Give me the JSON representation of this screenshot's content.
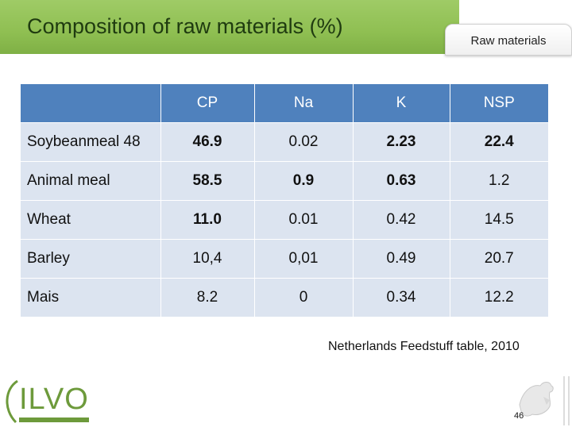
{
  "slide": {
    "title": "Composition of raw materials (%)",
    "tab_label": "Raw materials",
    "source_note": "Netherlands Feedstuff table, 2010",
    "page_number": "46",
    "logo_text": "ILVO"
  },
  "table": {
    "headers": [
      "",
      "CP",
      "Na",
      "K",
      "NSP"
    ],
    "rows": [
      {
        "label": "Soybeanmeal 48",
        "cp": "46.9",
        "na": "0.02",
        "k": "2.23",
        "nsp": "22.4"
      },
      {
        "label": "Animal meal",
        "cp": "58.5",
        "na": "0.9",
        "k": "0.63",
        "nsp": "1.2"
      },
      {
        "label": "Wheat",
        "cp": "11.0",
        "na": "0.01",
        "k": "0.42",
        "nsp": "14.5"
      },
      {
        "label": "Barley",
        "cp": "10,4",
        "na": "0,01",
        "k": "0.49",
        "nsp": "20.7"
      },
      {
        "label": "Mais",
        "cp": "8.2",
        "na": "0",
        "k": "0.34",
        "nsp": "12.2"
      }
    ]
  },
  "colors": {
    "header_bg": "#4f81bd",
    "row_bg": "#dce4f0",
    "title_bar": "#8fbf52",
    "highlight_red": "#e00000",
    "highlight_green": "#00b050"
  },
  "icons": [
    "ilvo-logo",
    "flemish-lion-icon"
  ]
}
